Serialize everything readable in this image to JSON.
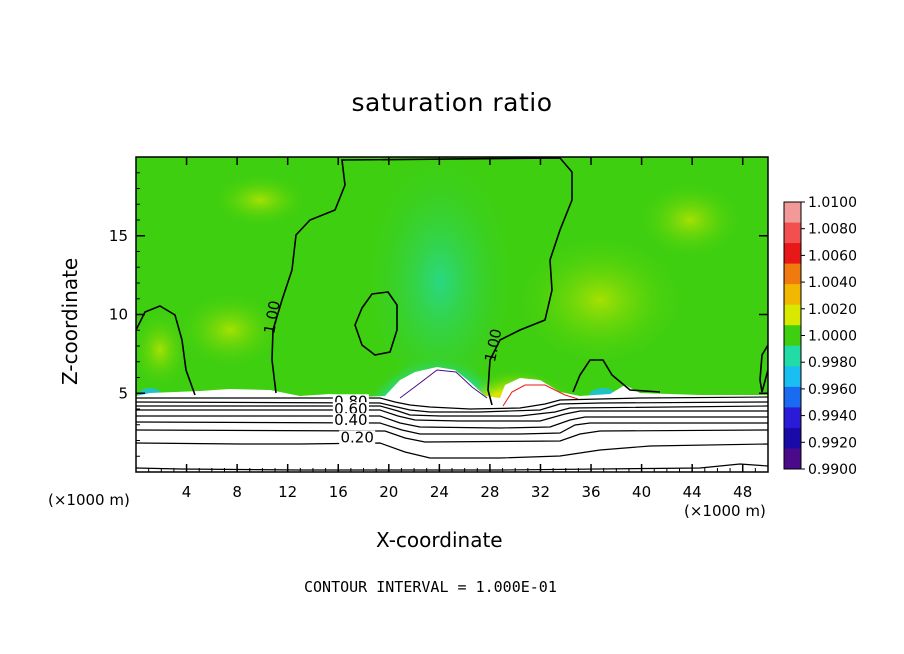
{
  "chart_data": {
    "type": "heatmap",
    "title": "saturation ratio",
    "xlabel": "X-coordinate",
    "ylabel": "Z-coordinate",
    "x_unit": "(×1000 m)",
    "x_unit_right": "(×1000 m)",
    "xlim": [
      0,
      50
    ],
    "ylim": [
      0,
      20
    ],
    "x_ticks": [
      4,
      8,
      12,
      16,
      20,
      24,
      28,
      32,
      36,
      40,
      44,
      48
    ],
    "x_tick_labels": [
      "4",
      "8",
      "12",
      "16",
      "20",
      "24",
      "28",
      "32",
      "36",
      "40",
      "44",
      "48"
    ],
    "y_ticks": [
      5,
      10,
      15
    ],
    "y_tick_labels": [
      "5",
      "10",
      "15"
    ],
    "footnote": "CONTOUR INTERVAL = 1.000E-01",
    "colorbar": {
      "levels": [
        "1.0100",
        "1.0080",
        "1.0060",
        "1.0040",
        "1.0020",
        "1.0000",
        "0.9980",
        "0.9960",
        "0.9940",
        "0.9920",
        "0.9900"
      ],
      "colors": [
        "#f29a9a",
        "#f25050",
        "#e81818",
        "#f07a10",
        "#f2b800",
        "#d8e800",
        "#3ecf10",
        "#22dca8",
        "#19bff0",
        "#1a6af2",
        "#2a1cd6",
        "#1a0aa8",
        "#4a0a8a"
      ]
    },
    "contour_labels": [
      {
        "text": "1.00",
        "x": 11.0,
        "z": 9.8
      },
      {
        "text": "1.00",
        "x": 28.5,
        "z": 8.0
      },
      {
        "text": "0.80",
        "x": 17.0,
        "z": 4.3
      },
      {
        "text": "0.60",
        "x": 17.0,
        "z": 3.8
      },
      {
        "text": "0.40",
        "x": 17.0,
        "z": 3.1
      },
      {
        "text": "0.20",
        "x": 17.5,
        "z": 2.0
      }
    ],
    "colors": {
      "background_field": "#3ecf10",
      "dry_core": "#1a6af2",
      "moist_core": "#e81818",
      "subsaturated": "#ffffff"
    }
  }
}
